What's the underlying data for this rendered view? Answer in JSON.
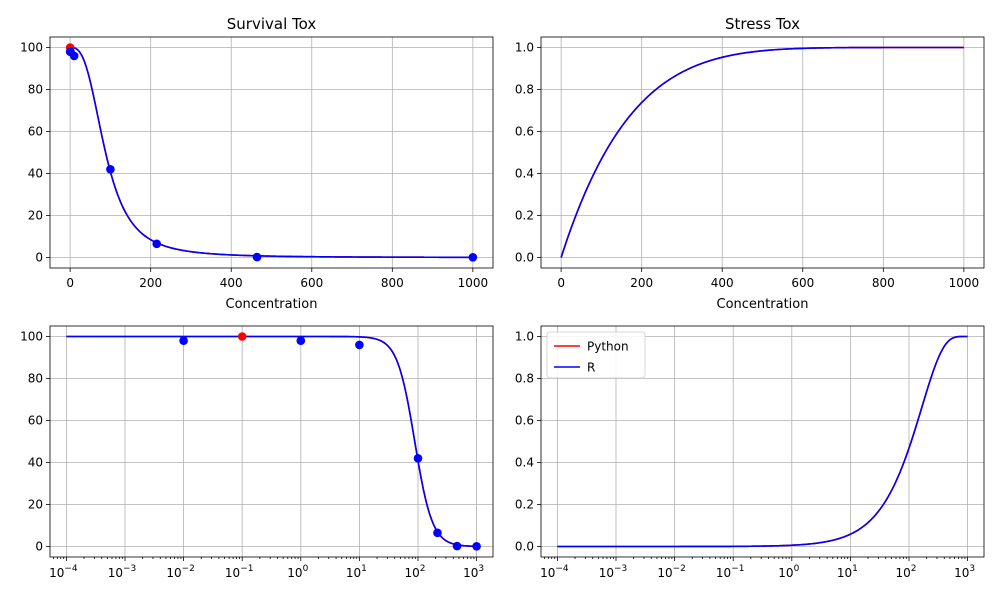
{
  "chart_data": [
    {
      "type": "line",
      "title": "Survival Tox",
      "xlabel": "Concentration",
      "ylabel": "",
      "xscale": "linear",
      "xlim": [
        -50,
        1050
      ],
      "ylim": [
        -5,
        105
      ],
      "xticks": [
        0,
        200,
        400,
        600,
        800,
        1000
      ],
      "xtick_labels": [
        "0",
        "200",
        "400",
        "600",
        "800",
        "1000"
      ],
      "yticks": [
        0,
        20,
        40,
        60,
        80,
        100
      ],
      "ytick_labels": [
        "0",
        "20",
        "40",
        "60",
        "80",
        "100"
      ],
      "grid": true,
      "curve": {
        "kind": "survival",
        "x_range": [
          0,
          1000
        ]
      },
      "series": [
        {
          "name": "Python",
          "color": "#ff0000"
        },
        {
          "name": "R",
          "color": "#0000ff"
        }
      ],
      "points": [
        {
          "x": 0,
          "y": 100,
          "color": "#ff0000"
        },
        {
          "x": 0.01,
          "y": 98,
          "color": "#0000ff"
        },
        {
          "x": 1,
          "y": 98,
          "color": "#0000ff"
        },
        {
          "x": 10,
          "y": 96,
          "color": "#0000ff"
        },
        {
          "x": 100,
          "y": 42,
          "color": "#0000ff"
        },
        {
          "x": 215,
          "y": 6.5,
          "color": "#0000ff"
        },
        {
          "x": 464,
          "y": 0.2,
          "color": "#0000ff"
        },
        {
          "x": 1000,
          "y": 0.1,
          "color": "#0000ff"
        }
      ]
    },
    {
      "type": "line",
      "title": "Stress Tox",
      "xlabel": "Concentration",
      "ylabel": "",
      "xscale": "linear",
      "xlim": [
        -50,
        1050
      ],
      "ylim": [
        -0.05,
        1.05
      ],
      "xticks": [
        0,
        200,
        400,
        600,
        800,
        1000
      ],
      "xtick_labels": [
        "0",
        "200",
        "400",
        "600",
        "800",
        "1000"
      ],
      "yticks": [
        0,
        0.2,
        0.4,
        0.6,
        0.8,
        1.0
      ],
      "ytick_labels": [
        "0.0",
        "0.2",
        "0.4",
        "0.6",
        "0.8",
        "1.0"
      ],
      "grid": true,
      "curve": {
        "kind": "stress",
        "x_range": [
          0,
          1000
        ]
      },
      "series": [
        {
          "name": "Python",
          "color": "#ff0000"
        },
        {
          "name": "R",
          "color": "#0000ff"
        }
      ],
      "points": []
    },
    {
      "type": "line",
      "title": "",
      "xlabel": "",
      "ylabel": "",
      "xscale": "log",
      "xlim": [
        5.25e-05,
        1905
      ],
      "ylim": [
        -5,
        105
      ],
      "xticks": [
        0.0001,
        0.001,
        0.01,
        0.1,
        1,
        10,
        100,
        1000
      ],
      "xtick_labels": [
        [
          "10",
          "−4"
        ],
        [
          "10",
          "−3"
        ],
        [
          "10",
          "−2"
        ],
        [
          "10",
          "−1"
        ],
        [
          "10",
          "0"
        ],
        [
          "10",
          "1"
        ],
        [
          "10",
          "2"
        ],
        [
          "10",
          "3"
        ]
      ],
      "yticks": [
        0,
        20,
        40,
        60,
        80,
        100
      ],
      "ytick_labels": [
        "0",
        "20",
        "40",
        "60",
        "80",
        "100"
      ],
      "grid": true,
      "curve": {
        "kind": "survival",
        "x_range": [
          0.0001,
          1000
        ]
      },
      "series": [
        {
          "name": "Python",
          "color": "#ff0000"
        },
        {
          "name": "R",
          "color": "#0000ff"
        }
      ],
      "points": [
        {
          "x": 0.01,
          "y": 98,
          "color": "#0000ff"
        },
        {
          "x": 0.1,
          "y": 100,
          "color": "#ff0000"
        },
        {
          "x": 1,
          "y": 98,
          "color": "#0000ff"
        },
        {
          "x": 10,
          "y": 96,
          "color": "#0000ff"
        },
        {
          "x": 100,
          "y": 42,
          "color": "#0000ff"
        },
        {
          "x": 215,
          "y": 6.5,
          "color": "#0000ff"
        },
        {
          "x": 464,
          "y": 0.2,
          "color": "#0000ff"
        },
        {
          "x": 1000,
          "y": 0.1,
          "color": "#0000ff"
        }
      ]
    },
    {
      "type": "line",
      "title": "",
      "xlabel": "",
      "ylabel": "",
      "xscale": "log",
      "xlim": [
        5.25e-05,
        1905
      ],
      "ylim": [
        -0.05,
        1.05
      ],
      "xticks": [
        0.0001,
        0.001,
        0.01,
        0.1,
        1,
        10,
        100,
        1000
      ],
      "xtick_labels": [
        [
          "10",
          "−4"
        ],
        [
          "10",
          "−3"
        ],
        [
          "10",
          "−2"
        ],
        [
          "10",
          "−1"
        ],
        [
          "10",
          "0"
        ],
        [
          "10",
          "1"
        ],
        [
          "10",
          "2"
        ],
        [
          "10",
          "3"
        ]
      ],
      "yticks": [
        0,
        0.2,
        0.4,
        0.6,
        0.8,
        1.0
      ],
      "ytick_labels": [
        "0.0",
        "0.2",
        "0.4",
        "0.6",
        "0.8",
        "1.0"
      ],
      "grid": true,
      "curve": {
        "kind": "stress",
        "x_range": [
          0.0001,
          1000
        ]
      },
      "series": [
        {
          "name": "Python",
          "color": "#ff0000"
        },
        {
          "name": "R",
          "color": "#0000ff"
        }
      ],
      "points": [],
      "legend": {
        "placement": "upper-left",
        "entries": [
          "Python",
          "R"
        ]
      }
    }
  ]
}
